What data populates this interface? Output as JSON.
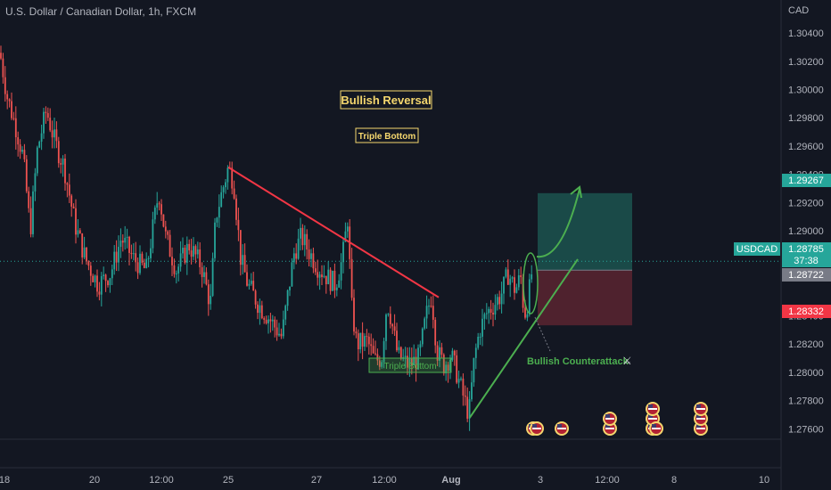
{
  "header": {
    "symbol_title": "U.S. Dollar / Canadian Dollar, 1h, FXCM",
    "currency": "CAD"
  },
  "colors": {
    "background": "#131722",
    "up": "#26a69a",
    "down": "#ef5350",
    "trendline_red": "#f23645",
    "trendline_green": "#4caf50",
    "target_zone": "#1d5c56",
    "stop_zone": "#5b2430",
    "annotation_yellow": "#f5d76e"
  },
  "chart_data": {
    "type": "candlestick",
    "y_axis": {
      "ylim": [
        1.2752,
        1.3052
      ],
      "ticks": [
        "1.30400",
        "1.30200",
        "1.30000",
        "1.29800",
        "1.29600",
        "1.29400",
        "1.29200",
        "1.29000",
        "1.28400",
        "1.28200",
        "1.28000",
        "1.27800",
        "1.27600"
      ]
    },
    "x_axis": {
      "ticks": [
        "18",
        "20",
        "12:00",
        "25",
        "27",
        "12:00",
        "Aug",
        "3",
        "12:00",
        "8",
        "10"
      ]
    },
    "price_labels": {
      "take_profit": "1.29267",
      "symbol": "USDCAD",
      "last_price": "1.28785",
      "countdown": "37:38",
      "entry": "1.28722",
      "stop_loss": "1.28332"
    },
    "anchors": [
      [
        0,
        1.3026
      ],
      [
        8,
        1.2995
      ],
      [
        18,
        1.2973
      ],
      [
        26,
        1.2952
      ],
      [
        34,
        1.29
      ],
      [
        42,
        1.2958
      ],
      [
        52,
        1.2985
      ],
      [
        62,
        1.2962
      ],
      [
        72,
        1.2945
      ],
      [
        84,
        1.2905
      ],
      [
        96,
        1.288
      ],
      [
        110,
        1.2862
      ],
      [
        124,
        1.287
      ],
      [
        136,
        1.2895
      ],
      [
        150,
        1.288
      ],
      [
        164,
        1.2872
      ],
      [
        178,
        1.2928
      ],
      [
        186,
        1.2895
      ],
      [
        198,
        1.2872
      ],
      [
        212,
        1.289
      ],
      [
        226,
        1.2875
      ],
      [
        236,
        1.2848
      ],
      [
        242,
        1.291
      ],
      [
        250,
        1.293
      ],
      [
        256,
        1.2945
      ],
      [
        262,
        1.2935
      ],
      [
        270,
        1.288
      ],
      [
        278,
        1.2862
      ],
      [
        290,
        1.2848
      ],
      [
        302,
        1.2838
      ],
      [
        316,
        1.2825
      ],
      [
        324,
        1.286
      ],
      [
        330,
        1.2885
      ],
      [
        338,
        1.2896
      ],
      [
        346,
        1.2886
      ],
      [
        356,
        1.2875
      ],
      [
        366,
        1.2868
      ],
      [
        376,
        1.2862
      ],
      [
        384,
        1.288
      ],
      [
        390,
        1.291
      ],
      [
        394,
        1.2848
      ],
      [
        400,
        1.282
      ],
      [
        412,
        1.2822
      ],
      [
        420,
        1.2808
      ],
      [
        428,
        1.281
      ],
      [
        434,
        1.285
      ],
      [
        438,
        1.284
      ],
      [
        446,
        1.2812
      ],
      [
        458,
        1.2805
      ],
      [
        470,
        1.281
      ],
      [
        478,
        1.284
      ],
      [
        484,
        1.2855
      ],
      [
        490,
        1.2815
      ],
      [
        498,
        1.2805
      ],
      [
        506,
        1.2812
      ],
      [
        512,
        1.28
      ],
      [
        520,
        1.2782
      ],
      [
        526,
        1.277
      ],
      [
        532,
        1.281
      ],
      [
        538,
        1.283
      ],
      [
        546,
        1.2842
      ],
      [
        554,
        1.2848
      ],
      [
        562,
        1.2855
      ],
      [
        570,
        1.287
      ],
      [
        578,
        1.2858
      ],
      [
        584,
        1.2868
      ],
      [
        588,
        1.284
      ],
      [
        592,
        1.285
      ],
      [
        598,
        1.2878
      ]
    ],
    "trendlines": [
      {
        "label": "resistance",
        "color": "red",
        "from": [
          256,
          1.2945
        ],
        "to": [
          492,
          1.2853
        ]
      },
      {
        "label": "support",
        "color": "green",
        "from": [
          527,
          1.2768
        ],
        "to": [
          648,
          1.288
        ]
      }
    ],
    "annotations": {
      "main_title": "Bullish Reversal",
      "pattern_label_top": "Triple Bottom",
      "pattern_label_box": "Triple Bottom",
      "counterattack_label": "Bullish Counterattack"
    },
    "position": {
      "direction": "long",
      "entry": 1.28722,
      "take_profit": 1.29267,
      "stop_loss": 1.28332
    },
    "events": {
      "icon": "us-flag-icon",
      "stacks": [
        1,
        1,
        1,
        2,
        3,
        3,
        1
      ]
    },
    "grid": false
  }
}
